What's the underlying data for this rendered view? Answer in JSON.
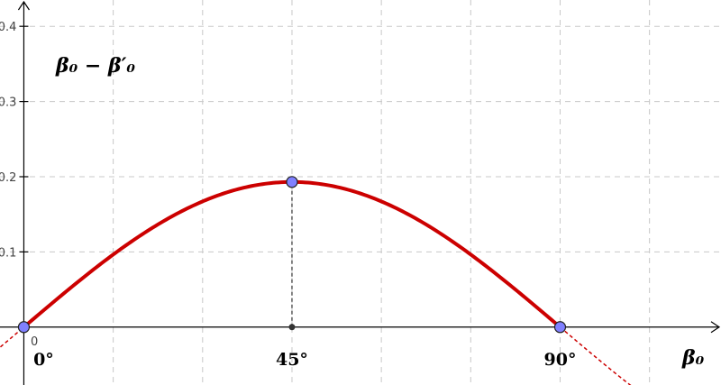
{
  "chart_data": {
    "type": "line",
    "title": "",
    "xlabel": "β₀",
    "ylabel": "β₀ − β′₀",
    "xlim": [
      -4,
      117
    ],
    "ylim": [
      -0.077,
      0.435
    ],
    "grid": true,
    "y_ticks": [
      {
        "value": 0.1,
        "label": "0.1"
      },
      {
        "value": 0.2,
        "label": "0.2"
      },
      {
        "value": 0.3,
        "label": "0.3"
      },
      {
        "value": 0.4,
        "label": "0.4"
      }
    ],
    "origin_label": "0",
    "x_ticks": [
      {
        "value": 0,
        "label": "0°"
      },
      {
        "value": 45,
        "label": "45°"
      },
      {
        "value": 90,
        "label": "90°"
      }
    ],
    "curve": {
      "amplitude": 0.193,
      "domain": [
        0,
        90
      ],
      "extension_domain": [
        -8,
        105
      ],
      "color": "#cc0000",
      "extension_style": "dashed"
    },
    "points": [
      {
        "x": 0,
        "y": 0,
        "color": "#8080ff"
      },
      {
        "x": 45,
        "y": 0.193,
        "color": "#8080ff"
      },
      {
        "x": 90,
        "y": 0,
        "color": "#8080ff"
      }
    ],
    "foot_point": {
      "x": 45,
      "y": 0
    },
    "drop_line": {
      "x": 45,
      "from": 0,
      "to": 0.193
    }
  }
}
